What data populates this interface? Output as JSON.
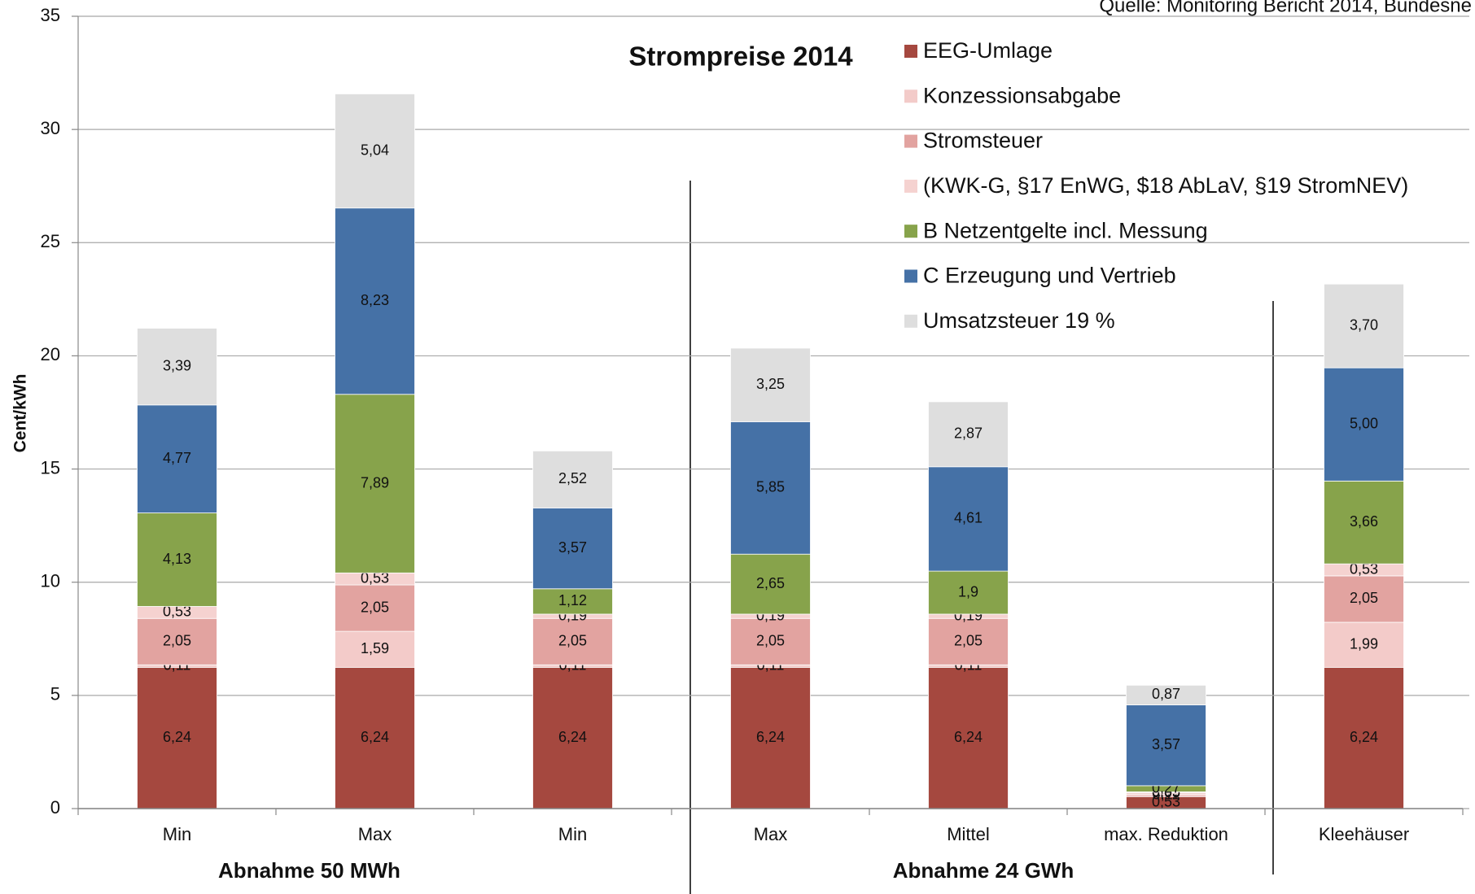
{
  "chart_data": {
    "type": "stacked_bar",
    "title": "Strompreise 2014",
    "source": "Quelle: Monitoring Bericht 2014, Bundesne",
    "y_label": "Cent/kWh",
    "categories": [
      "Min",
      "Max",
      "Min",
      "Max",
      "Mittel",
      "max. Reduktion",
      "Kleehäuser"
    ],
    "groups": [
      {
        "label": "Abnahme 50 MWh"
      },
      {
        "label": "Abnahme 24 GWh"
      }
    ],
    "series": [
      {
        "name": "EEG-Umlage",
        "color": "#a5483f",
        "values": [
          6.24,
          6.24,
          6.24,
          6.24,
          6.24,
          0.53,
          6.24
        ],
        "value_labels": [
          "6,24",
          "6,24",
          "6,24",
          "6,24",
          "6,24",
          "0,53",
          "6,24"
        ]
      },
      {
        "name": "Konzessionsabgabe",
        "color": "#f3cbc9",
        "values": [
          0.11,
          1.59,
          0.11,
          0.11,
          0.11,
          0.11,
          1.99
        ],
        "value_labels": [
          "0,11",
          "1,59",
          "0,11",
          "0,11",
          "0,11",
          "0,11",
          "1,99"
        ]
      },
      {
        "name": "Stromsteuer",
        "color": "#e2a3a0",
        "values": [
          2.05,
          2.05,
          2.05,
          2.05,
          2.05,
          0.05,
          2.05
        ],
        "value_labels": [
          "2,05",
          "2,05",
          "2,05",
          "2,05",
          "2,05",
          "0,05",
          "2,05"
        ]
      },
      {
        "name": "(KWK-G, §17 EnWG, $18 AbLaV, §19 StromNEV)",
        "color": "#f5d2d0",
        "values": [
          0.53,
          0.53,
          0.19,
          0.19,
          0.19,
          0.05,
          0.53
        ],
        "value_labels": [
          "0,53",
          "0,53",
          "0,19",
          "0,19",
          "0,19",
          "0,05",
          "0,53"
        ]
      },
      {
        "name": "B Netzentgelte incl. Messung",
        "color": "#87a34b",
        "values": [
          4.13,
          7.89,
          1.12,
          2.65,
          1.9,
          0.27,
          3.66
        ],
        "value_labels": [
          "4,13",
          "7,89",
          "1,12",
          "2,65",
          "1,9",
          "0,27",
          "3,66"
        ]
      },
      {
        "name": "C Erzeugung und Vertrieb",
        "color": "#4571a6",
        "values": [
          4.77,
          8.23,
          3.57,
          5.85,
          4.61,
          3.57,
          5.0
        ],
        "value_labels": [
          "4,77",
          "8,23",
          "3,57",
          "5,85",
          "4,61",
          "3,57",
          "5,00"
        ]
      },
      {
        "name": "Umsatzsteuer 19 %",
        "color": "#dedede",
        "values": [
          3.39,
          5.04,
          2.52,
          3.25,
          2.87,
          0.87,
          3.7
        ],
        "value_labels": [
          "3,39",
          "5,04",
          "2,52",
          "3,25",
          "2,87",
          "0,87",
          "3,70"
        ]
      }
    ],
    "ylim": [
      0,
      35
    ],
    "yticks": [
      0,
      5,
      10,
      15,
      20,
      25,
      30,
      35
    ],
    "grid": true
  }
}
